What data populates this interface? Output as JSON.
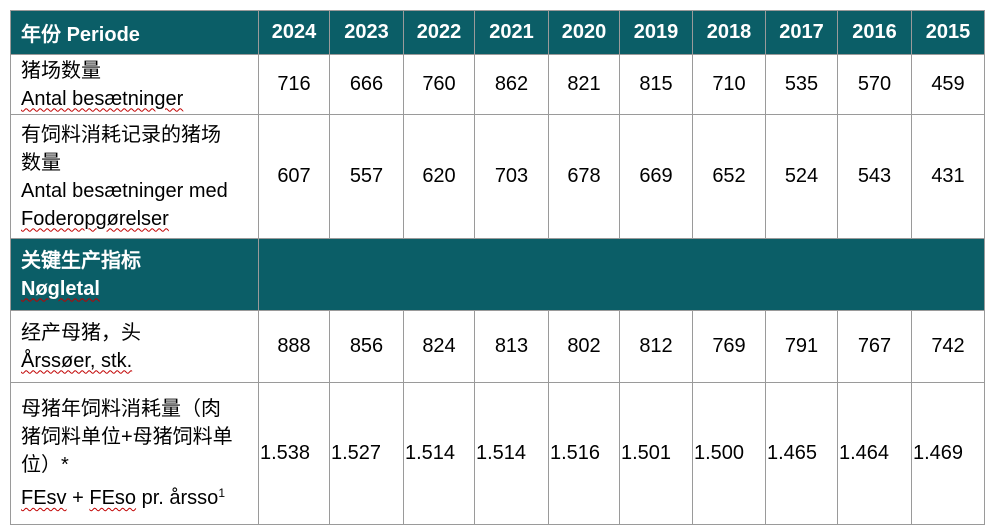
{
  "header": {
    "label_zh": "年份",
    "label_da": "Periode",
    "years": [
      "2024",
      "2023",
      "2022",
      "2021",
      "2020",
      "2019",
      "2018",
      "2017",
      "2016",
      "2015"
    ]
  },
  "rows": [
    {
      "label_zh": "猪场数量",
      "label_da": "Antal besætninger",
      "values": [
        "716",
        "666",
        "760",
        "862",
        "821",
        "815",
        "710",
        "535",
        "570",
        "459"
      ]
    },
    {
      "label_zh_line1": "有饲料消耗记录的猪场",
      "label_zh_line2": "数量",
      "label_da_line1": "Antal besætninger med",
      "label_da_line2": "Foderopgørelser",
      "values": [
        "607",
        "557",
        "620",
        "703",
        "678",
        "669",
        "652",
        "524",
        "543",
        "431"
      ]
    }
  ],
  "section": {
    "label_zh": "关键生产指标",
    "label_da": "Nøgletal"
  },
  "rows2": [
    {
      "label_zh": "经产母猪，头",
      "label_da": "Årssøer, stk.",
      "values": [
        "888",
        "856",
        "824",
        "813",
        "802",
        "812",
        "769",
        "791",
        "767",
        "742"
      ]
    },
    {
      "label_zh_line1": "母猪年饲料消耗量（肉",
      "label_zh_line2": "猪饲料单位+母猪饲料单",
      "label_zh_line3": "位）*",
      "label_da_a": "FEsv",
      "label_da_b": " + ",
      "label_da_c": "FEso",
      "label_da_d": " pr. årsso",
      "label_da_sup": "1",
      "values": [
        "1.538",
        "1.527",
        "1.514",
        "1.514",
        "1.516",
        "1.501",
        "1.500",
        "1.465",
        "1.464",
        "1.469"
      ]
    }
  ],
  "colors": {
    "header_bg": "#0b5e67",
    "header_text": "#ffffff",
    "border": "#9a9a9a",
    "spell_underline": "#c00000"
  }
}
